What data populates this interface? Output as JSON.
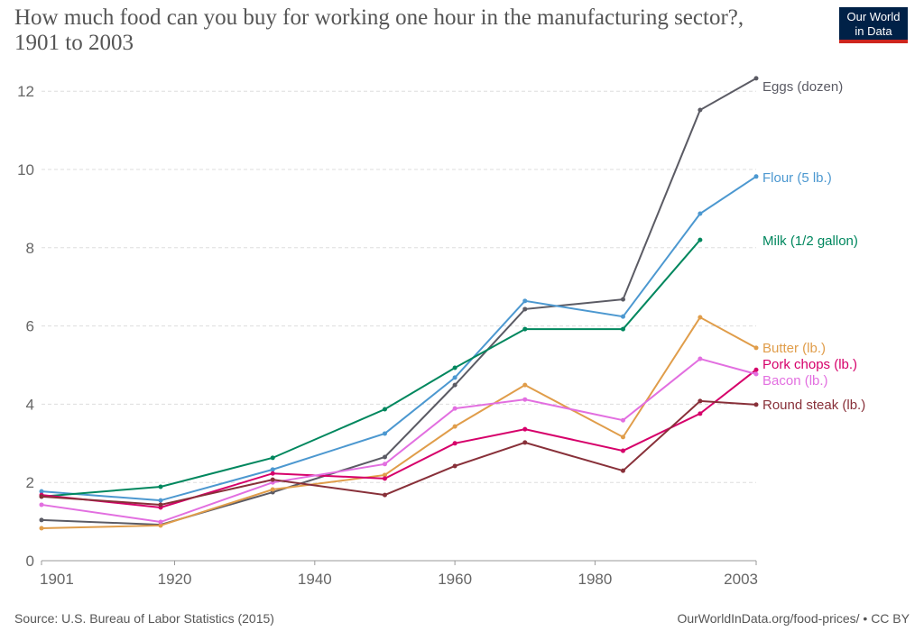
{
  "title": "How much food can you buy for working one hour in the manufacturing sector?, 1901 to 2003",
  "logo": {
    "line1": "Our World",
    "line2": "in Data"
  },
  "source": "Source: U.S. Bureau of Labor Statistics (2015)",
  "url": "OurWorldInData.org/food-prices/ • CC BY",
  "chart_data": {
    "type": "line",
    "title": "How much food can you buy for working one hour in the manufacturing sector?, 1901 to 2003",
    "x": [
      1901,
      1918,
      1934,
      1950,
      1960,
      1970,
      1984,
      1995,
      2003
    ],
    "xlim": [
      1901,
      2003
    ],
    "ylim": [
      0,
      12.5
    ],
    "xticks": [
      1901,
      1920,
      1940,
      1960,
      1980,
      2003
    ],
    "yticks": [
      0,
      2,
      4,
      6,
      8,
      10,
      12
    ],
    "grid": "horizontal dashed",
    "legend": "right, labels at line ends",
    "series": [
      {
        "name": "Eggs (dozen)",
        "color": "#5b5b64",
        "values": [
          1.04,
          0.92,
          1.75,
          2.65,
          4.49,
          6.43,
          6.68,
          11.52,
          12.33
        ]
      },
      {
        "name": "Flour (5 lb.)",
        "color": "#4c98d0",
        "values": [
          1.77,
          1.54,
          2.33,
          3.25,
          4.68,
          6.64,
          6.24,
          8.87,
          9.82
        ]
      },
      {
        "name": "Milk (1/2 gallon)",
        "color": "#00875e",
        "values": [
          1.64,
          1.89,
          2.63,
          3.87,
          4.93,
          5.92,
          5.92,
          8.2,
          null
        ]
      },
      {
        "name": "Butter (lb.)",
        "color": "#e09d4a",
        "values": [
          0.83,
          0.9,
          1.82,
          2.19,
          3.43,
          4.49,
          3.16,
          6.22,
          5.44
        ]
      },
      {
        "name": "Pork chops (lb.)",
        "color": "#d6006a",
        "values": [
          1.68,
          1.36,
          2.23,
          2.1,
          3.0,
          3.36,
          2.81,
          3.76,
          4.88
        ]
      },
      {
        "name": "Bacon (lb.)",
        "color": "#e26fe0",
        "values": [
          1.43,
          0.99,
          2.0,
          2.47,
          3.89,
          4.12,
          3.59,
          5.16,
          4.77
        ]
      },
      {
        "name": "Round steak (lb.)",
        "color": "#883039",
        "values": [
          1.64,
          1.43,
          2.07,
          1.68,
          2.42,
          3.02,
          2.3,
          4.08,
          3.99
        ]
      }
    ]
  }
}
